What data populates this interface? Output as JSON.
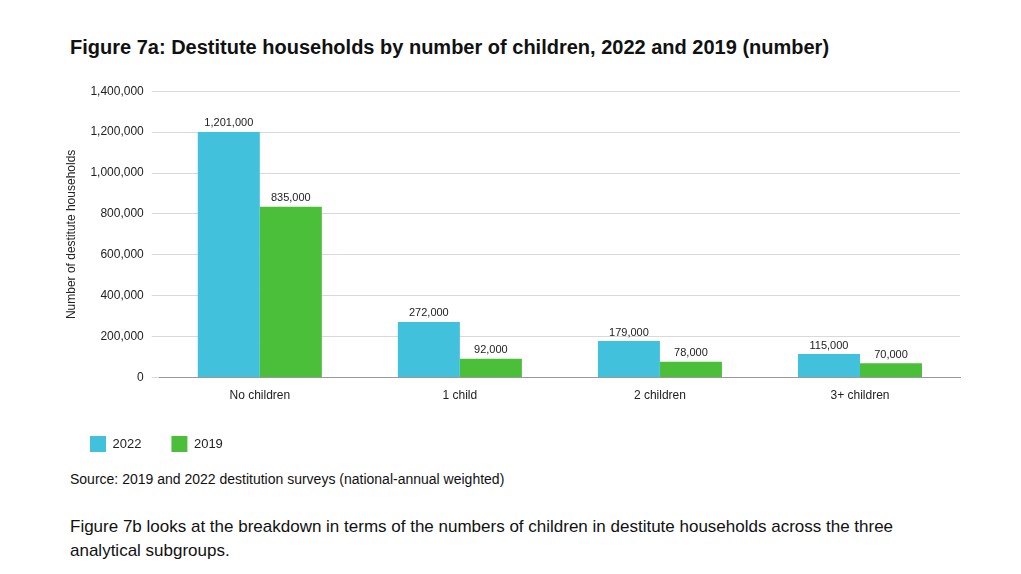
{
  "chart_data": {
    "type": "bar",
    "title": "Figure 7a: Destitute households by number of children, 2022 and 2019 (number)",
    "y_label": "Number of destitute households",
    "categories": [
      "No children",
      "1 child",
      "2 children",
      "3+ children"
    ],
    "series": [
      {
        "name": "2022",
        "color": "#41c1dc",
        "values": [
          1201000,
          272000,
          179000,
          115000
        ],
        "value_labels": [
          "1,201,000",
          "272,000",
          "179,000",
          "115,000"
        ]
      },
      {
        "name": "2019",
        "color": "#4cbf3a",
        "values": [
          835000,
          92000,
          78000,
          70000
        ],
        "value_labels": [
          "835,000",
          "92,000",
          "78,000",
          "70,000"
        ]
      }
    ],
    "ylim": [
      0,
      1400000
    ],
    "yticks": [
      0,
      {
        "value": 200000,
        "label": "200,000"
      },
      {
        "value": 400000,
        "label": "400,000"
      },
      {
        "value": 600000,
        "label": "600,000"
      },
      {
        "value": 800000,
        "label": "800,000"
      },
      {
        "value": 1000000,
        "label": "1,000,000"
      },
      {
        "value": 1200000,
        "label": "1,200,000"
      },
      {
        "value": 1400000,
        "label": "1,400,000"
      }
    ],
    "grid": true,
    "data_labels": true,
    "legend": "bottom-left",
    "source": "Source: 2019 and 2022 destitution surveys (national-annual weighted)",
    "caption": "Figure 7b looks at the breakdown in terms of the numbers of children in destitute households across the three analytical subgroups."
  }
}
